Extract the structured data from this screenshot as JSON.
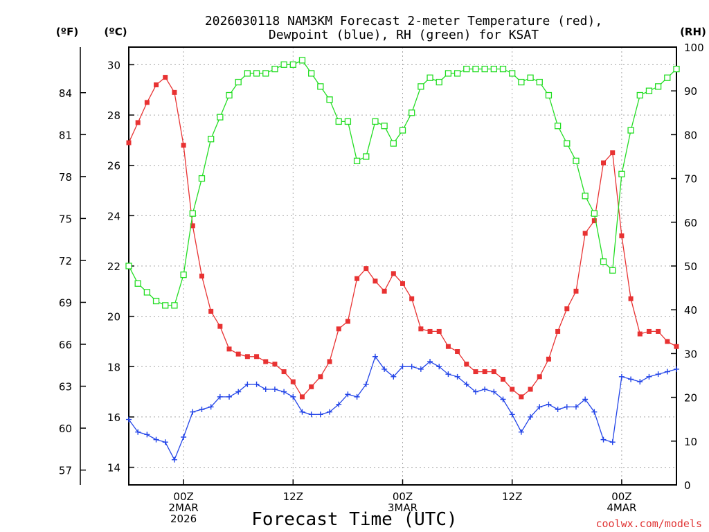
{
  "chart_data": {
    "type": "line",
    "title": "2026030118 NAM3KM Forecast 2-meter Temperature (red),",
    "subtitle": "Dewpoint (blue), RH (green) for KSAT",
    "xlabel": "Forecast Time (UTC)",
    "credit": "coolwx.com/models",
    "units": {
      "left_f": "(ºF)",
      "left_c": "(ºC)",
      "right": "(RH)"
    },
    "y_celsius": {
      "lim": [
        13.3,
        30.7
      ],
      "ticks": [
        "14",
        "16",
        "18",
        "20",
        "22",
        "24",
        "26",
        "28",
        "30"
      ]
    },
    "y_fahrenheit": {
      "ticks": [
        "57",
        "60",
        "63",
        "66",
        "69",
        "72",
        "75",
        "78",
        "81",
        "84"
      ]
    },
    "y_rh": {
      "lim": [
        0,
        100
      ],
      "ticks": [
        "0",
        "10",
        "20",
        "30",
        "40",
        "50",
        "60",
        "70",
        "80",
        "90",
        "100"
      ]
    },
    "x_range_hours": [
      18,
      78
    ],
    "x_ticks": [
      {
        "hour": 24,
        "labels": [
          "00Z",
          "2MAR",
          "2026"
        ]
      },
      {
        "hour": 36,
        "labels": [
          "12Z"
        ]
      },
      {
        "hour": 48,
        "labels": [
          "00Z",
          "3MAR"
        ]
      },
      {
        "hour": 60,
        "labels": [
          "12Z"
        ]
      },
      {
        "hour": 72,
        "labels": [
          "00Z",
          "4MAR"
        ]
      }
    ],
    "series": [
      {
        "name": "2-meter Temperature",
        "unit": "°C",
        "color": "#e83232",
        "marker": "filled-square",
        "values": [
          26.9,
          27.7,
          28.5,
          29.2,
          29.5,
          28.9,
          26.8,
          23.6,
          21.6,
          20.2,
          19.6,
          18.7,
          18.5,
          18.4,
          18.4,
          18.2,
          18.1,
          17.8,
          17.4,
          16.8,
          17.2,
          17.6,
          18.2,
          19.5,
          19.8,
          21.5,
          21.9,
          21.4,
          21.0,
          21.7,
          21.3,
          20.7,
          19.5,
          19.4,
          19.4,
          18.8,
          18.6,
          18.1,
          17.8,
          17.8,
          17.8,
          17.5,
          17.1,
          16.8,
          17.1,
          17.6,
          18.3,
          19.4,
          20.3,
          21.0,
          23.3,
          23.8,
          26.1,
          26.5,
          23.2,
          20.7,
          19.3,
          19.4,
          19.4,
          19.0,
          18.8
        ]
      },
      {
        "name": "Dewpoint",
        "unit": "°C",
        "color": "#2244e8",
        "marker": "plus",
        "values": [
          15.9,
          15.4,
          15.3,
          15.1,
          15.0,
          14.3,
          15.2,
          16.2,
          16.3,
          16.4,
          16.8,
          16.8,
          17.0,
          17.3,
          17.3,
          17.1,
          17.1,
          17.0,
          16.8,
          16.2,
          16.1,
          16.1,
          16.2,
          16.5,
          16.9,
          16.8,
          17.3,
          18.4,
          17.9,
          17.6,
          18.0,
          18.0,
          17.9,
          18.2,
          18.0,
          17.7,
          17.6,
          17.3,
          17.0,
          17.1,
          17.0,
          16.7,
          16.1,
          15.4,
          16.0,
          16.4,
          16.5,
          16.3,
          16.4,
          16.4,
          16.7,
          16.2,
          15.1,
          15.0,
          17.6,
          17.5,
          17.4,
          17.6,
          17.7,
          17.8,
          17.9
        ]
      },
      {
        "name": "Relative Humidity",
        "unit": "%",
        "color": "#22dd22",
        "marker": "open-square",
        "values": [
          50,
          46,
          44,
          42,
          41,
          41,
          48,
          62,
          70,
          79,
          84,
          89,
          92,
          94,
          94,
          94,
          95,
          96,
          96,
          97,
          94,
          91,
          88,
          83,
          83,
          74,
          75,
          83,
          82,
          78,
          81,
          85,
          91,
          93,
          92,
          94,
          94,
          95,
          95,
          95,
          95,
          95,
          94,
          92,
          93,
          92,
          89,
          82,
          78,
          74,
          66,
          62,
          51,
          49,
          71,
          81,
          89,
          90,
          91,
          93,
          95
        ]
      }
    ]
  }
}
